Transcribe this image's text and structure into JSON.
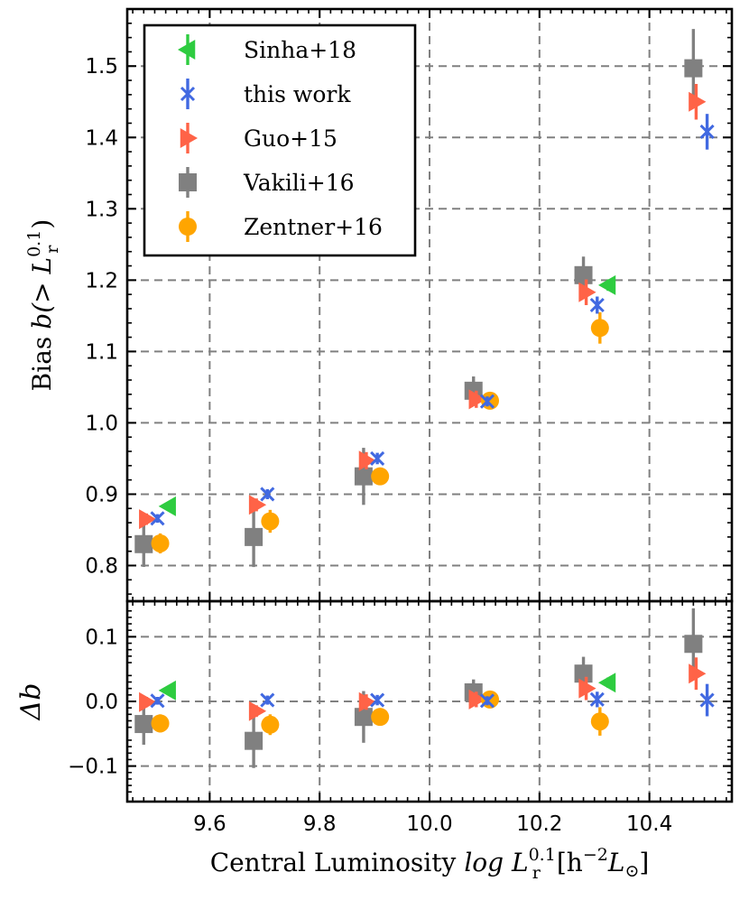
{
  "chart_data": {
    "type": "scatter",
    "xlabel": {
      "text": "Central Luminosity",
      "math": "log L",
      "sup": "0.1",
      "sub": "r",
      "bracket": "[h",
      "bracket_sup": "−2",
      "bracket_tail": "L",
      "bracket_sub": "⊙",
      "bracket_close": "]"
    },
    "xlim": [
      9.45,
      10.55
    ],
    "xticks": [
      "9.6",
      "9.8",
      "10.0",
      "10.2",
      "10.4"
    ],
    "xtick_values": [
      9.6,
      9.8,
      10.0,
      10.2,
      10.4
    ],
    "top": {
      "ylabel": {
        "prefix": "Bias",
        "math": "b(> L",
        "sup": "0.1",
        "sub": "r",
        "close": ")"
      },
      "ylim": [
        0.75,
        1.58
      ],
      "yticks": [
        "0.8",
        "0.9",
        "1.0",
        "1.1",
        "1.2",
        "1.3",
        "1.4",
        "1.5"
      ],
      "ytick_values": [
        0.8,
        0.9,
        1.0,
        1.1,
        1.2,
        1.3,
        1.4,
        1.5
      ]
    },
    "bottom": {
      "ylabel": {
        "math": "Δb"
      },
      "ylim": [
        -0.155,
        0.155
      ],
      "yticks": [
        "−0.1",
        "0.0",
        "0.1"
      ],
      "ytick_values": [
        -0.1,
        0.0,
        0.1
      ]
    },
    "series": [
      {
        "name": "Sinha+18",
        "marker": "triangle-left",
        "color": "#2ecc40",
        "x": [
          9.525,
          10.325
        ],
        "y": [
          0.883,
          1.193
        ],
        "yerr": [
          0.006,
          0.008
        ],
        "delta": [
          0.017,
          0.029
        ],
        "delta_err": [
          0.006,
          0.008
        ]
      },
      {
        "name": "this work",
        "marker": "x",
        "color": "#4169e1",
        "x": [
          9.505,
          9.705,
          9.905,
          10.105,
          10.305,
          10.505
        ],
        "y": [
          0.866,
          0.9,
          0.95,
          1.03,
          1.165,
          1.408
        ],
        "yerr": [
          0.006,
          0.007,
          0.008,
          0.007,
          0.012,
          0.025
        ],
        "delta": [
          0.001,
          0.002,
          0.002,
          0.001,
          0.003,
          0.002
        ],
        "delta_err": [
          0.006,
          0.007,
          0.008,
          0.007,
          0.012,
          0.025
        ]
      },
      {
        "name": "Guo+15",
        "marker": "triangle-right",
        "color": "#ff6347",
        "x": [
          9.485,
          9.685,
          9.885,
          10.085,
          10.285,
          10.485
        ],
        "y": [
          0.865,
          0.885,
          0.947,
          1.033,
          1.183,
          1.45
        ],
        "yerr": [
          0.008,
          0.009,
          0.012,
          0.012,
          0.018,
          0.025
        ],
        "delta": [
          -0.001,
          -0.015,
          -0.001,
          0.003,
          0.02,
          0.043
        ],
        "delta_err": [
          0.008,
          0.009,
          0.012,
          0.012,
          0.018,
          0.025
        ]
      },
      {
        "name": "Vakili+16",
        "marker": "square",
        "color": "#808080",
        "x": [
          9.48,
          9.68,
          9.88,
          10.08,
          10.28,
          10.48
        ],
        "y": [
          0.83,
          0.84,
          0.925,
          1.045,
          1.207,
          1.497
        ],
        "yerr": [
          0.032,
          0.042,
          0.04,
          0.02,
          0.026,
          0.055
        ],
        "delta": [
          -0.035,
          -0.061,
          -0.024,
          0.014,
          0.043,
          0.089
        ],
        "delta_err": [
          0.032,
          0.042,
          0.04,
          0.02,
          0.026,
          0.055
        ]
      },
      {
        "name": "Zentner+16",
        "marker": "circle",
        "color": "#ffa500",
        "x": [
          9.51,
          9.71,
          9.91,
          10.11,
          10.31
        ],
        "y": [
          0.831,
          0.862,
          0.925,
          1.031,
          1.133
        ],
        "yerr": [
          0.014,
          0.016,
          0.009,
          0.007,
          0.022
        ],
        "delta": [
          -0.034,
          -0.036,
          -0.024,
          0.003,
          -0.031
        ],
        "delta_err": [
          0.014,
          0.016,
          0.009,
          0.007,
          0.022
        ]
      }
    ],
    "legend": {
      "location": "upper-left",
      "entries": [
        "Sinha+18",
        "this work",
        "Guo+15",
        "Vakili+16",
        "Zentner+16"
      ]
    }
  }
}
